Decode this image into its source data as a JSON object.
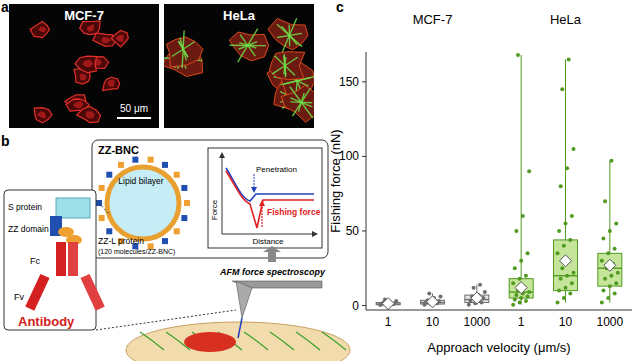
{
  "panels": {
    "a": {
      "label": "a",
      "images": [
        {
          "title": "MCF-7"
        },
        {
          "title": "HeLa"
        }
      ],
      "scale_bar": "50 μm"
    },
    "b": {
      "label": "b",
      "nanocage": "ZZ-BNC",
      "lipid": "Lipid bilayer",
      "protein": "ZZ-L protein",
      "protein_note": "(120 molecules/ZZ-BNC)",
      "s_protein": "S protein",
      "zz_domain": "ZZ domain",
      "fc": "Fc",
      "fv": "Fv",
      "antibody": "Antibody",
      "penetration": "Penetration",
      "fishing_force": "Fishing force",
      "force_axis": "Force",
      "distance_axis": "Distance",
      "method": "AFM force spectroscopy"
    },
    "c": {
      "label": "c"
    }
  },
  "chart_data": {
    "type": "box",
    "x_label": "Approach velocity (μm/s)",
    "y_label": "Fishing force (nN)",
    "categories": [
      "1",
      "10",
      "1000",
      "1",
      "10",
      "1000"
    ],
    "groups": [
      {
        "label": "MCF-7",
        "members": [
          0,
          1,
          2
        ],
        "color": "#6e6e6e"
      },
      {
        "label": "HeLa",
        "members": [
          3,
          4,
          5
        ],
        "color": "#4f9a1f"
      }
    ],
    "colors": [
      "#e6e6e6",
      "#e6e6e6",
      "#e6e6e6",
      "#c5e59b",
      "#c5e59b",
      "#c5e59b"
    ],
    "ylim": [
      -3,
      170
    ],
    "yticks": [
      0,
      50,
      100,
      150
    ],
    "grid": false,
    "boxes": [
      {
        "min": 0.3,
        "q1": 0.5,
        "median": 1,
        "q3": 2,
        "max": 4,
        "mean": 1.3,
        "points": [
          0.3,
          0.5,
          0.8,
          1,
          1.2,
          1.5,
          2,
          2.5,
          3,
          4
        ]
      },
      {
        "min": 0.5,
        "q1": 1,
        "median": 2,
        "q3": 3.5,
        "max": 8,
        "mean": 2.5,
        "points": [
          0.5,
          1,
          1.5,
          2,
          2.5,
          3,
          3.5,
          5,
          6,
          8
        ]
      },
      {
        "min": 0.5,
        "q1": 2,
        "median": 4,
        "q3": 7,
        "max": 14,
        "mean": 5,
        "points": [
          0.5,
          1.5,
          2,
          3,
          4,
          5,
          6,
          7,
          9,
          12,
          14
        ]
      },
      {
        "min": 0.5,
        "q1": 5,
        "median": 9,
        "q3": 18,
        "max": 168,
        "mean": 12,
        "points": [
          0.5,
          2,
          3,
          4,
          5,
          6,
          7,
          8,
          9,
          10,
          12,
          15,
          18,
          20,
          25,
          30,
          35,
          50,
          60,
          90,
          168
        ]
      },
      {
        "min": 2,
        "q1": 10,
        "median": 20,
        "q3": 44,
        "max": 165,
        "mean": 30,
        "points": [
          2,
          5,
          8,
          10,
          12,
          15,
          18,
          20,
          22,
          25,
          30,
          35,
          40,
          44,
          50,
          55,
          60,
          80,
          92,
          105,
          145,
          165
        ]
      },
      {
        "min": 2,
        "q1": 13,
        "median": 25,
        "q3": 35,
        "max": 97,
        "mean": 27,
        "points": [
          2,
          5,
          8,
          10,
          13,
          15,
          18,
          20,
          22,
          25,
          28,
          30,
          35,
          38,
          45,
          50,
          55,
          70,
          97
        ]
      }
    ]
  }
}
